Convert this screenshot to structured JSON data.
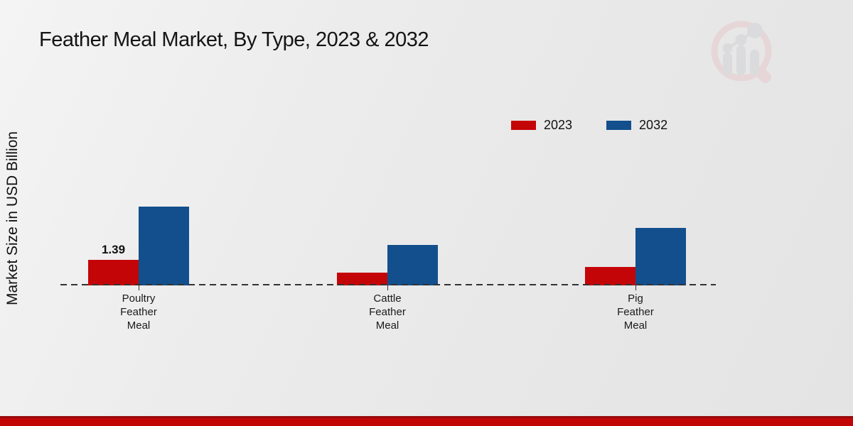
{
  "title": "Feather Meal Market, By Type, 2023 & 2032",
  "y_axis_label": "Market Size in USD Billion",
  "legend": {
    "position": "top-right",
    "items": [
      {
        "label": "2023",
        "color": "#c40508"
      },
      {
        "label": "2032",
        "color": "#134f8c"
      }
    ]
  },
  "colors": {
    "series_2023": "#c40508",
    "series_2032": "#134f8c",
    "baseline": "#333333",
    "bottom_band": "#c10505",
    "bottom_band_edge": "#970b0d",
    "background": "#ececec",
    "text": "#141414"
  },
  "watermark_icon": "magnifier-bar-chart-logo",
  "chart_data": {
    "type": "bar",
    "categories": [
      "Poultry Feather Meal",
      "Cattle Feather Meal",
      "Pig Feather Meal"
    ],
    "category_label_lines": [
      [
        "Poultry",
        "Feather",
        "Meal"
      ],
      [
        "Cattle",
        "Feather",
        "Meal"
      ],
      [
        "Pig",
        "Feather",
        "Meal"
      ]
    ],
    "series": [
      {
        "name": "2023",
        "color": "#c40508",
        "values": [
          1.39,
          0.7,
          1.0
        ]
      },
      {
        "name": "2032",
        "color": "#134f8c",
        "values": [
          4.29,
          2.2,
          3.13
        ]
      }
    ],
    "annotations": [
      {
        "text": "1.39",
        "series_index": 0,
        "category_index": 0
      }
    ],
    "xlabel": "",
    "ylabel": "Market Size in USD Billion",
    "ylim": [
      0,
      4.5
    ],
    "grid": false,
    "baseline_value": 0,
    "y_axis_ticks_visible": false,
    "legend_position": "top-right"
  }
}
